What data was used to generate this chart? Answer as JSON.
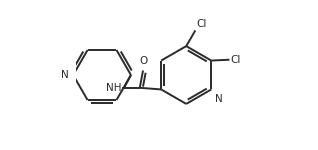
{
  "background_color": "#ffffff",
  "line_color": "#2a2a2a",
  "line_width": 1.4,
  "dbo": 0.018,
  "figsize": [
    3.18,
    1.5
  ],
  "dpi": 100,
  "xlim": [
    0.0,
    1.0
  ],
  "ylim": [
    0.05,
    0.95
  ]
}
